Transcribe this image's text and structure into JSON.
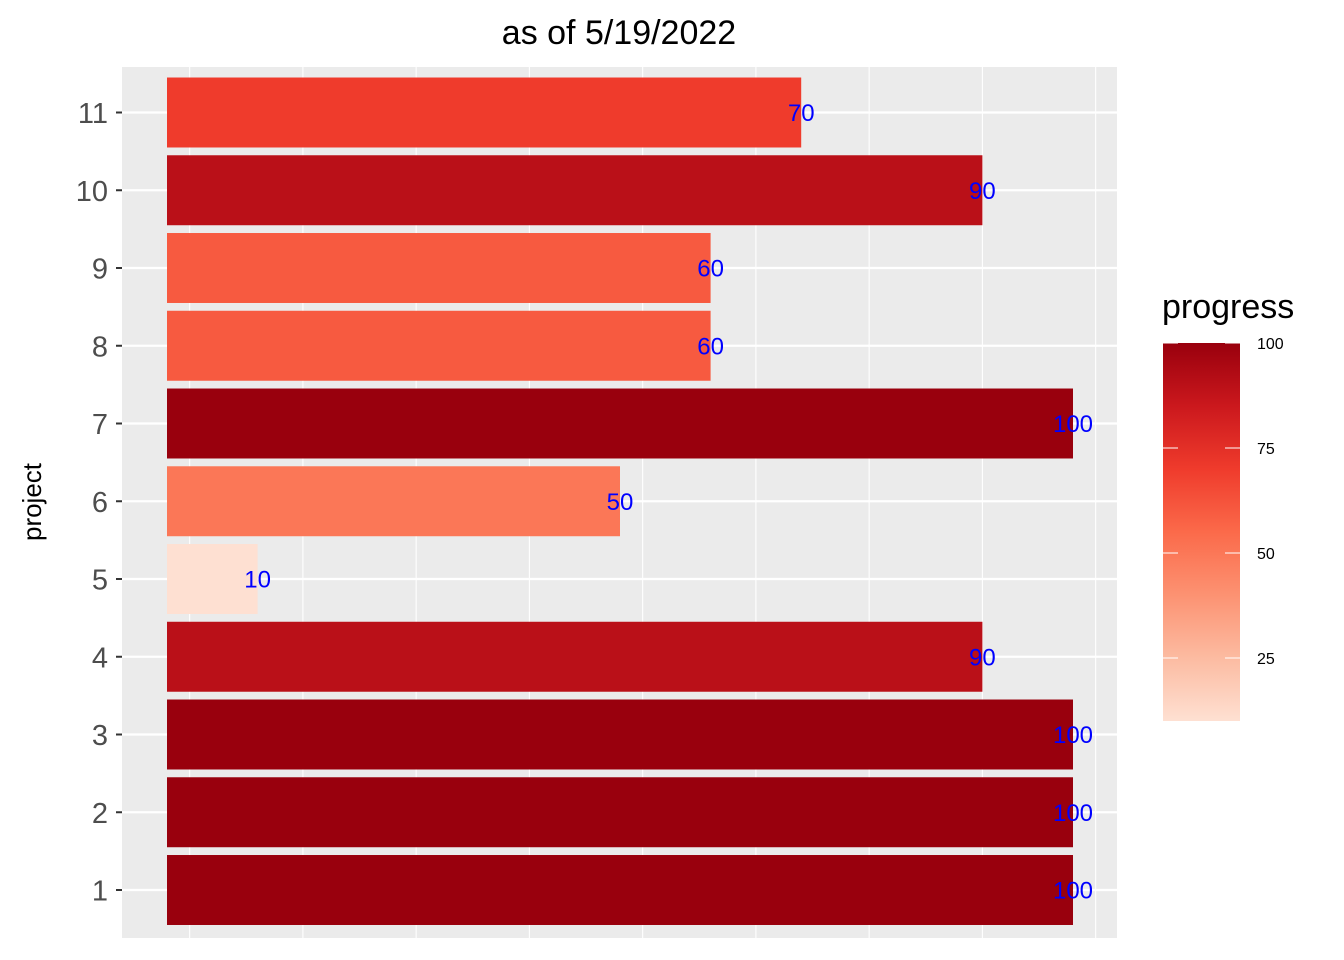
{
  "chart_data": {
    "type": "bar",
    "orientation": "horizontal",
    "title": "as of 5/19/2022",
    "xlabel": "",
    "ylabel": "project",
    "categories": [
      "1",
      "2",
      "3",
      "4",
      "5",
      "6",
      "7",
      "8",
      "9",
      "10",
      "11"
    ],
    "values": [
      100,
      100,
      100,
      90,
      10,
      50,
      100,
      60,
      60,
      90,
      70
    ],
    "xlim": [
      0,
      105
    ],
    "label_color": "#0000ff",
    "panel_background": "#ebebeb",
    "grid": true,
    "legend": {
      "title": "progress",
      "placement": "right",
      "type": "colorbar",
      "ticks": [
        25,
        50,
        75,
        100
      ],
      "range": [
        10,
        100
      ],
      "colors": [
        "#fee0d2",
        "#fcbba1",
        "#fc9272",
        "#fb6a4a",
        "#ef3b2c",
        "#cb181d",
        "#99000d"
      ]
    }
  }
}
